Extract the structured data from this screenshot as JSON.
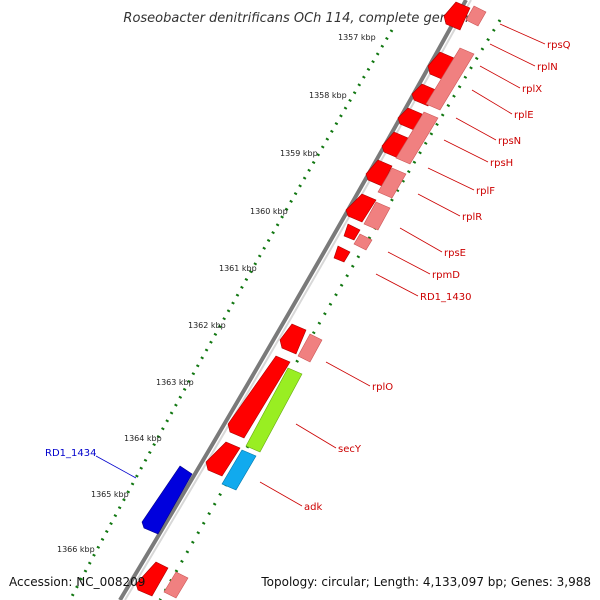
{
  "title": "Roseobacter denitrificans OCh 114, complete genome",
  "footer": {
    "accession": "Accession: NC_008209",
    "summary": "Topology: circular; Length: 4,133,097 bp; Genes: 3,988"
  },
  "colors": {
    "gene_red": "#ff0000",
    "gene_pink": "#f08080",
    "gene_green": "#99ee22",
    "gene_cyan": "#11aaee",
    "gene_blue": "#0000dd",
    "label_red": "#cc0000",
    "label_blue": "#0000cc",
    "tick_green": "#117711"
  },
  "ticks": [
    {
      "label": "1357 kbp"
    },
    {
      "label": "1358 kbp"
    },
    {
      "label": "1359 kbp"
    },
    {
      "label": "1360 kbp"
    },
    {
      "label": "1361 kbp"
    },
    {
      "label": "1362 kbp"
    },
    {
      "label": "1363 kbp"
    },
    {
      "label": "1364 kbp"
    },
    {
      "label": "1365 kbp"
    },
    {
      "label": "1366 kbp"
    }
  ],
  "gene_labels": [
    {
      "name": "rpsQ"
    },
    {
      "name": "rplN"
    },
    {
      "name": "rplX"
    },
    {
      "name": "rplE"
    },
    {
      "name": "rpsN"
    },
    {
      "name": "rpsH"
    },
    {
      "name": "rplF"
    },
    {
      "name": "rplR"
    },
    {
      "name": "rpsE"
    },
    {
      "name": "rpmD"
    },
    {
      "name": "RD1_1430"
    },
    {
      "name": "rplO"
    },
    {
      "name": "secY"
    },
    {
      "name": "adk"
    },
    {
      "name": "RD1_1434"
    }
  ]
}
